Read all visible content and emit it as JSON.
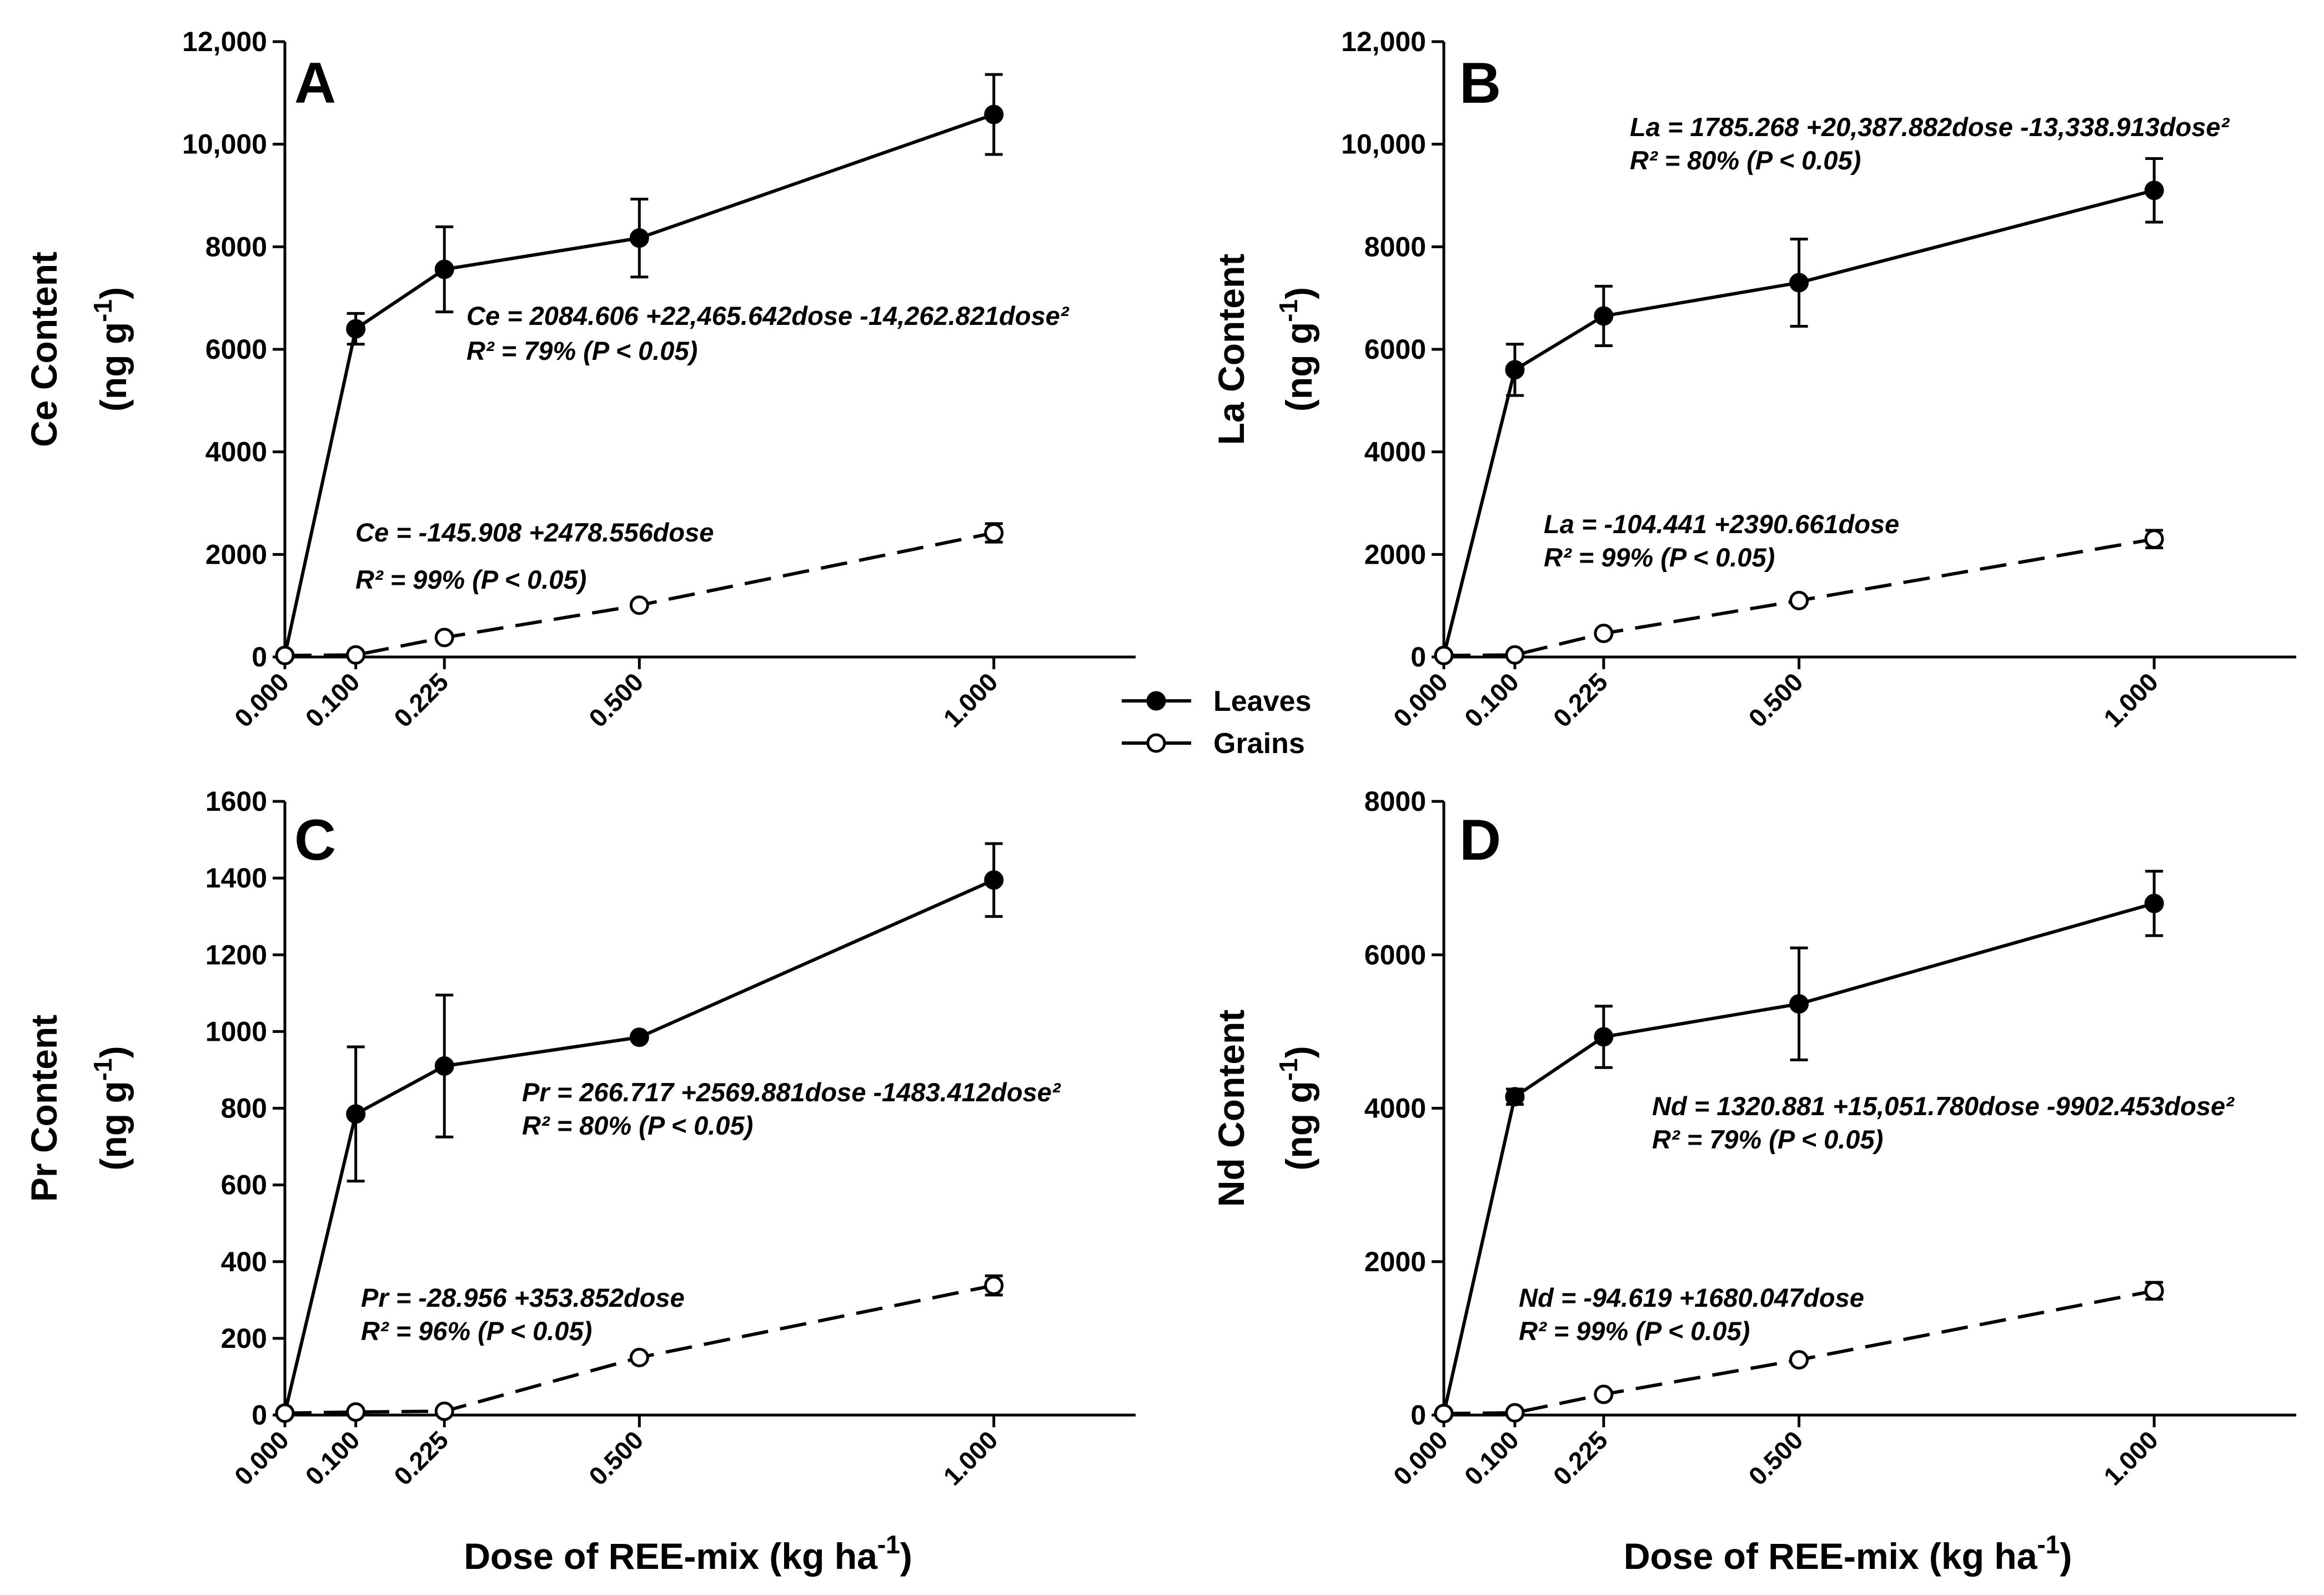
{
  "colors": {
    "ink": "#000000",
    "background": "#ffffff",
    "open_marker_fill": "#ffffff"
  },
  "legend": {
    "leaves_label": "Leaves",
    "grains_label": "Grains"
  },
  "chart_data": [
    {
      "type": "line",
      "panel": "A",
      "ylabel_line1": "Ce Content",
      "ylabel_line2": "(ng g",
      "ylabel_sup": "-1",
      "ylabel_end": ")",
      "xlabel": "Dose of REE-mix (kg ha",
      "xlabel_sup": "-1",
      "xlabel_end": ")",
      "x": [
        0.0,
        0.1,
        0.225,
        0.5,
        1.0
      ],
      "xtick_labels": [
        "0.000",
        "0.100",
        "0.225",
        "0.500",
        "1.000"
      ],
      "xlim": [
        0,
        1.2
      ],
      "ylim": [
        0,
        12000
      ],
      "yticks": [
        0,
        2000,
        4000,
        6000,
        8000,
        10000,
        12000
      ],
      "ytick_labels": [
        "0",
        "2000",
        "4000",
        "6000",
        "8000",
        "10,000",
        "12,000"
      ],
      "series": [
        {
          "name": "Leaves",
          "style": "solid",
          "marker": "filled",
          "x": [
            0.0,
            0.1,
            0.225,
            0.5,
            1.0
          ],
          "values": [
            30,
            6400,
            7560,
            8170,
            10580
          ],
          "errors": [
            0,
            300,
            830,
            760,
            780
          ]
        },
        {
          "name": "Grains",
          "style": "dashed",
          "marker": "open",
          "x": [
            0.0,
            0.1,
            0.225,
            0.5,
            1.0
          ],
          "values": [
            30,
            40,
            380,
            1010,
            2420
          ],
          "errors": [
            0,
            0,
            0,
            0,
            180
          ]
        }
      ],
      "annotations": {
        "leaves_eq": "Ce = 2084.606 +22,465.642dose -14,262.821dose²",
        "leaves_r2": "R² = 79% (P < 0.05)",
        "grains_eq": "Ce = -145.908 +2478.556dose",
        "grains_r2": "R² = 99% (P < 0.05)"
      }
    },
    {
      "type": "line",
      "panel": "B",
      "ylabel_line1": "La Content",
      "ylabel_line2": "(ng g",
      "ylabel_sup": "-1",
      "ylabel_end": ")",
      "xlabel": "Dose of REE-mix (kg ha",
      "xlabel_sup": "-1",
      "xlabel_end": ")",
      "x": [
        0.0,
        0.1,
        0.225,
        0.5,
        1.0
      ],
      "xtick_labels": [
        "0.000",
        "0.100",
        "0.225",
        "0.500",
        "1.000"
      ],
      "xlim": [
        0,
        1.2
      ],
      "ylim": [
        0,
        12000
      ],
      "yticks": [
        0,
        2000,
        4000,
        6000,
        8000,
        10000,
        12000
      ],
      "ytick_labels": [
        "0",
        "2000",
        "4000",
        "6000",
        "8000",
        "10,000",
        "12,000"
      ],
      "series": [
        {
          "name": "Leaves",
          "style": "solid",
          "marker": "filled",
          "x": [
            0.0,
            0.1,
            0.225,
            0.5,
            1.0
          ],
          "values": [
            30,
            5600,
            6650,
            7300,
            9100
          ],
          "errors": [
            0,
            500,
            580,
            850,
            620
          ]
        },
        {
          "name": "Grains",
          "style": "dashed",
          "marker": "open",
          "x": [
            0.0,
            0.1,
            0.225,
            0.5,
            1.0
          ],
          "values": [
            30,
            40,
            460,
            1100,
            2300
          ],
          "errors": [
            0,
            0,
            0,
            0,
            170
          ]
        }
      ],
      "annotations": {
        "leaves_eq": "La = 1785.268 +20,387.882dose -13,338.913dose²",
        "leaves_r2": "R² = 80% (P < 0.05)",
        "grains_eq": "La = -104.441 +2390.661dose",
        "grains_r2": "R² = 99% (P < 0.05)"
      }
    },
    {
      "type": "line",
      "panel": "C",
      "ylabel_line1": "Pr Content",
      "ylabel_line2": "(ng g",
      "ylabel_sup": "-1",
      "ylabel_end": ")",
      "xlabel": "Dose of REE-mix (kg ha",
      "xlabel_sup": "-1",
      "xlabel_end": ")",
      "x": [
        0.0,
        0.1,
        0.225,
        0.5,
        1.0
      ],
      "xtick_labels": [
        "0.000",
        "0.100",
        "0.225",
        "0.500",
        "1.000"
      ],
      "xlim": [
        0,
        1.2
      ],
      "ylim": [
        0,
        1600
      ],
      "yticks": [
        0,
        200,
        400,
        600,
        800,
        1000,
        1200,
        1400,
        1600
      ],
      "ytick_labels": [
        "0",
        "200",
        "400",
        "600",
        "800",
        "1000",
        "1200",
        "1400",
        "1600"
      ],
      "series": [
        {
          "name": "Leaves",
          "style": "solid",
          "marker": "filled",
          "x": [
            0.0,
            0.1,
            0.225,
            0.5,
            1.0
          ],
          "values": [
            5,
            785,
            910,
            985,
            1395
          ],
          "errors": [
            0,
            175,
            185,
            0,
            95
          ]
        },
        {
          "name": "Grains",
          "style": "dashed",
          "marker": "open",
          "x": [
            0.0,
            0.1,
            0.225,
            0.5,
            1.0
          ],
          "values": [
            5,
            8,
            10,
            150,
            338
          ],
          "errors": [
            0,
            0,
            0,
            0,
            25
          ]
        }
      ],
      "annotations": {
        "leaves_eq": "Pr = 266.717 +2569.881dose -1483.412dose²",
        "leaves_r2": "R² = 80% (P < 0.05)",
        "grains_eq": "Pr = -28.956 +353.852dose",
        "grains_r2": "R² = 96% (P < 0.05)"
      }
    },
    {
      "type": "line",
      "panel": "D",
      "ylabel_line1": "Nd Content",
      "ylabel_line2": "(ng g",
      "ylabel_sup": "-1",
      "ylabel_end": ")",
      "xlabel": "Dose of REE-mix (kg ha",
      "xlabel_sup": "-1",
      "xlabel_end": ")",
      "x": [
        0.0,
        0.1,
        0.225,
        0.5,
        1.0
      ],
      "xtick_labels": [
        "0.000",
        "0.100",
        "0.225",
        "0.500",
        "1.000"
      ],
      "xlim": [
        0,
        1.2
      ],
      "ylim": [
        0,
        8000
      ],
      "yticks": [
        0,
        2000,
        4000,
        6000,
        8000
      ],
      "ytick_labels": [
        "0",
        "2000",
        "4000",
        "6000",
        "8000"
      ],
      "series": [
        {
          "name": "Leaves",
          "style": "solid",
          "marker": "filled",
          "x": [
            0.0,
            0.1,
            0.225,
            0.5,
            1.0
          ],
          "values": [
            20,
            4150,
            4930,
            5360,
            6670
          ],
          "errors": [
            0,
            100,
            400,
            730,
            420
          ]
        },
        {
          "name": "Grains",
          "style": "dashed",
          "marker": "open",
          "x": [
            0.0,
            0.1,
            0.225,
            0.5,
            1.0
          ],
          "values": [
            20,
            30,
            270,
            720,
            1620
          ],
          "errors": [
            0,
            0,
            0,
            0,
            110
          ]
        }
      ],
      "annotations": {
        "leaves_eq": "Nd = 1320.881 +15,051.780dose -9902.453dose²",
        "leaves_r2": "R² = 79% (P < 0.05)",
        "grains_eq": "Nd = -94.619 +1680.047dose",
        "grains_r2": "R² = 99% (P < 0.05)"
      }
    }
  ]
}
